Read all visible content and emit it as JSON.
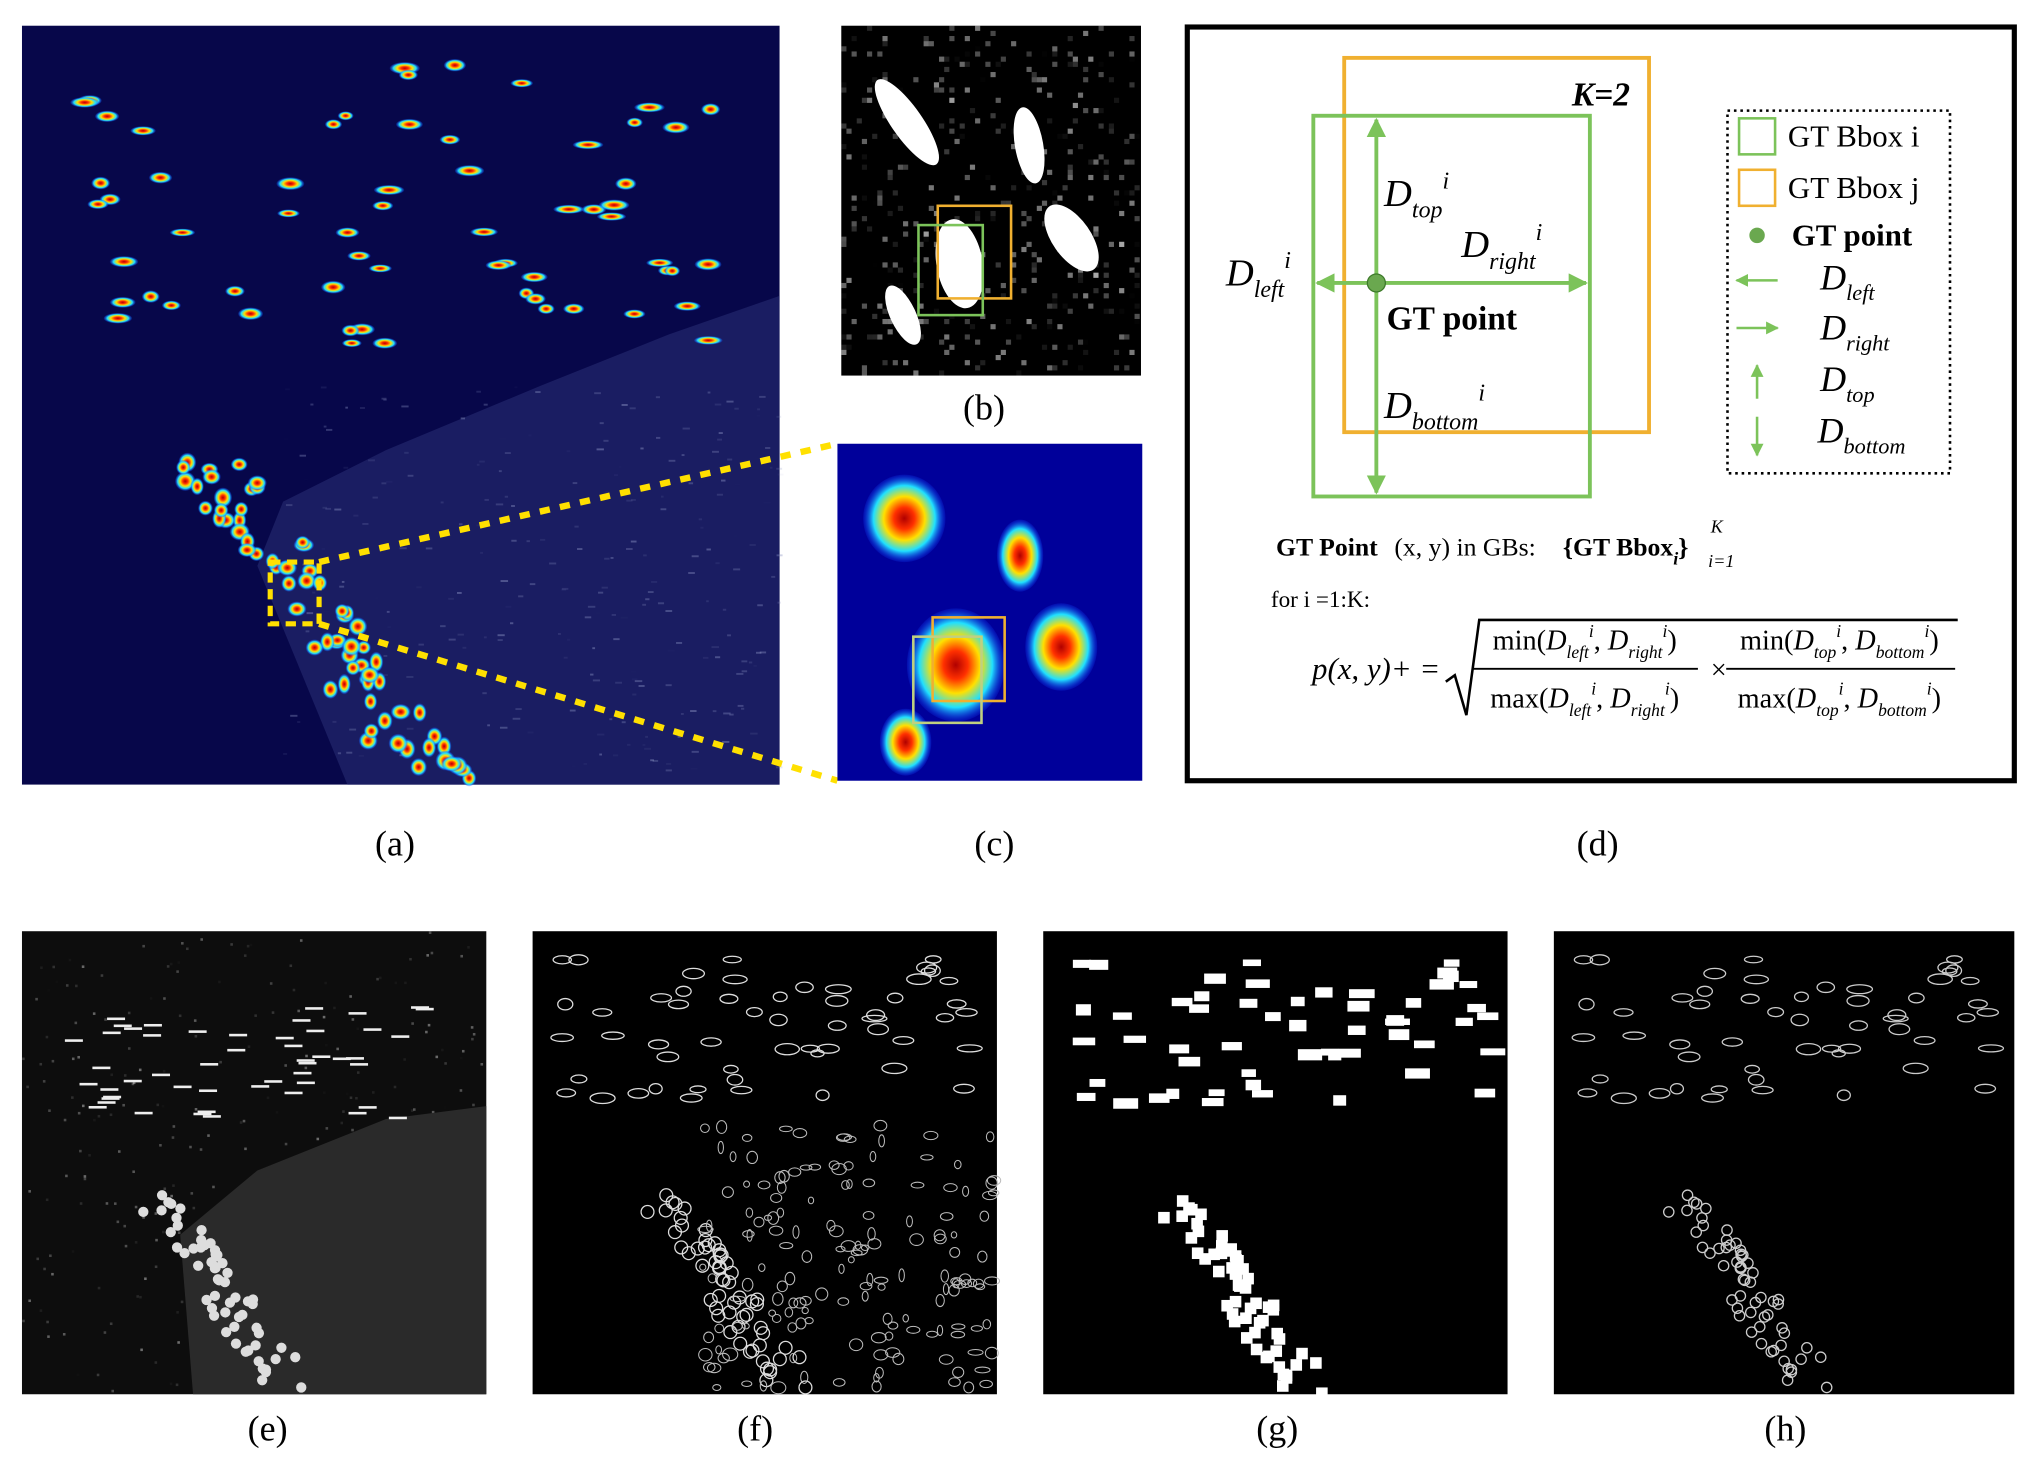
{
  "captions": [
    "(a)",
    "(b)",
    "(c)",
    "(d)",
    "(e)",
    "(f)",
    "(g)",
    "(h)"
  ],
  "diagram": {
    "k_label": "K=2",
    "gt_point": "GT point",
    "d_top": {
      "main": "D",
      "sub": "top",
      "sup": "i"
    },
    "d_right": {
      "main": "D",
      "sub": "right",
      "sup": "i"
    },
    "d_left": {
      "main": "D",
      "sub": "left",
      "sup": "i"
    },
    "d_bottom": {
      "main": "D",
      "sub": "bottom",
      "sup": "i"
    },
    "legend": {
      "bbox_i": "GT Bbox i",
      "bbox_j": "GT Bbox j",
      "point": "GT point",
      "left": {
        "main": "D",
        "sub": "left"
      },
      "right": {
        "main": "D",
        "sub": "right"
      },
      "top": {
        "main": "D",
        "sub": "top"
      },
      "bottom": {
        "main": "D",
        "sub": "bottom"
      }
    }
  },
  "formula": {
    "intro": "GT Point",
    "intro_rest": "(x, y) in GBs:",
    "set_open": "{GT Bbox",
    "set_sub": "i",
    "set_close": "}",
    "set_sup": "K",
    "set_lower": "i=1",
    "loop": "for i =1:K:",
    "lhs": "p(x, y)+ =",
    "times": "×",
    "frac1": {
      "num": {
        "open": "min(",
        "a": {
          "main": "D",
          "sub": "left",
          "sup": "i"
        },
        "sep": ", ",
        "b": {
          "main": "D",
          "sub": "right",
          "sup": "i"
        },
        "close": ")"
      },
      "den": {
        "open": "max(",
        "a": {
          "main": "D",
          "sub": "left",
          "sup": "i"
        },
        "sep": ", ",
        "b": {
          "main": "D",
          "sub": "right",
          "sup": "i"
        },
        "close": ")"
      }
    },
    "frac2": {
      "num": {
        "open": "min(",
        "a": {
          "main": "D",
          "sub": "top",
          "sup": "i"
        },
        "sep": ", ",
        "b": {
          "main": "D",
          "sub": "bottom",
          "sup": "i"
        },
        "close": ")"
      },
      "den": {
        "open": "max(",
        "a": {
          "main": "D",
          "sub": "top",
          "sup": "i"
        },
        "sep": ", ",
        "b": {
          "main": "D",
          "sub": "bottom",
          "sup": "i"
        },
        "close": ")"
      }
    }
  }
}
